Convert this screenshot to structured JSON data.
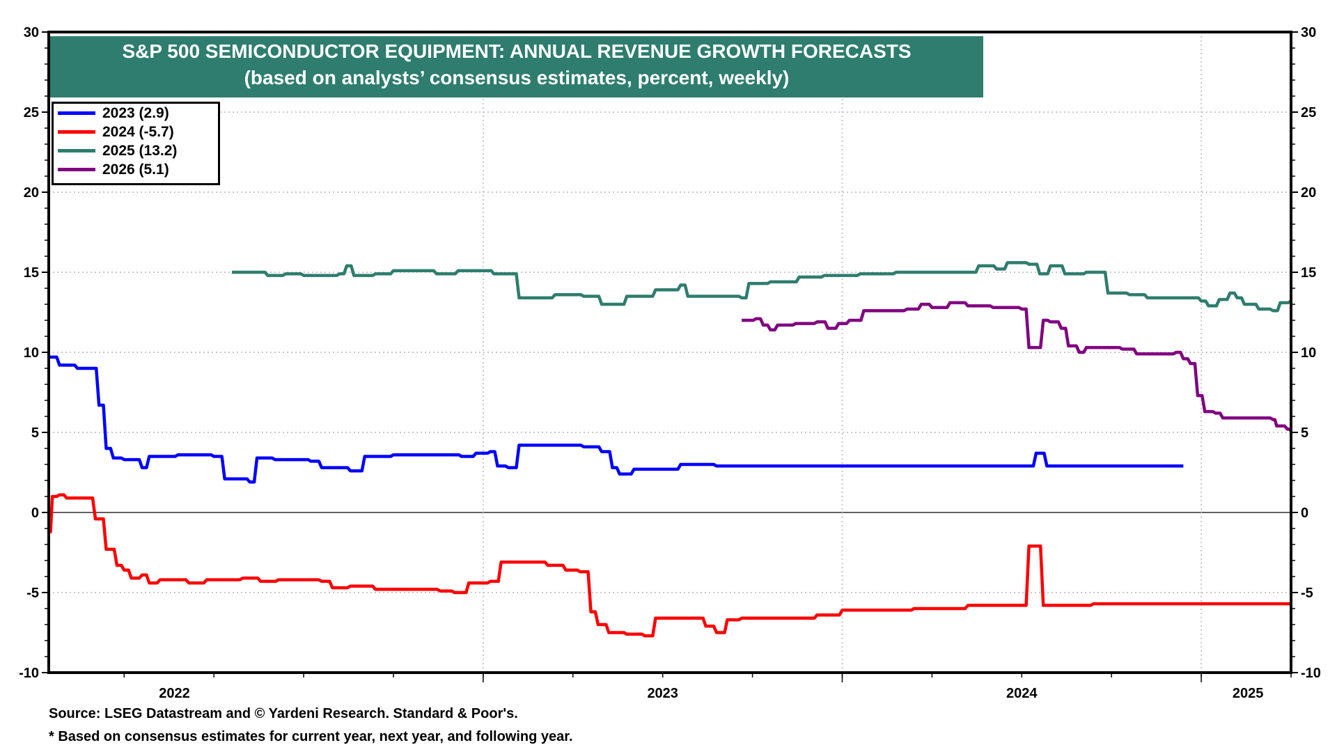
{
  "chart_data": {
    "type": "line",
    "title": "S&P 500 SEMICONDUCTOR EQUIPMENT: ANNUAL REVENUE GROWTH FORECASTS",
    "subtitle": "(based on analysts’ consensus estimates, percent, weekly)",
    "xlabel": "",
    "ylabel": "",
    "ylim": [
      -10,
      30
    ],
    "xlim": [
      2021.79,
      2025.25
    ],
    "yticks": [
      -10,
      -5,
      0,
      5,
      10,
      15,
      20,
      25,
      30
    ],
    "xtick_labels": [
      "2022",
      "2023",
      "2024",
      "2025"
    ],
    "grid": true,
    "legend_position": "top-left",
    "series": [
      {
        "name": "2023 (2.9)",
        "color": "#0000ff",
        "points": [
          [
            2021.79,
            9.7
          ],
          [
            2021.82,
            9.2
          ],
          [
            2021.87,
            9.0
          ],
          [
            2021.93,
            6.7
          ],
          [
            2021.95,
            4.0
          ],
          [
            2021.97,
            3.4
          ],
          [
            2022.0,
            3.3
          ],
          [
            2022.03,
            3.3
          ],
          [
            2022.05,
            2.8
          ],
          [
            2022.07,
            3.5
          ],
          [
            2022.15,
            3.6
          ],
          [
            2022.25,
            3.5
          ],
          [
            2022.28,
            2.1
          ],
          [
            2022.35,
            1.9
          ],
          [
            2022.37,
            3.4
          ],
          [
            2022.42,
            3.3
          ],
          [
            2022.52,
            3.2
          ],
          [
            2022.55,
            2.8
          ],
          [
            2022.63,
            2.6
          ],
          [
            2022.67,
            3.5
          ],
          [
            2022.75,
            3.6
          ],
          [
            2022.88,
            3.6
          ],
          [
            2022.94,
            3.5
          ],
          [
            2022.98,
            3.7
          ],
          [
            2023.02,
            3.8
          ],
          [
            2023.04,
            2.9
          ],
          [
            2023.07,
            2.8
          ],
          [
            2023.1,
            4.2
          ],
          [
            2023.2,
            4.2
          ],
          [
            2023.28,
            4.1
          ],
          [
            2023.33,
            3.8
          ],
          [
            2023.36,
            2.8
          ],
          [
            2023.38,
            2.4
          ],
          [
            2023.42,
            2.7
          ],
          [
            2023.52,
            2.7
          ],
          [
            2023.55,
            3.0
          ],
          [
            2023.65,
            2.9
          ],
          [
            2024.0,
            2.9
          ],
          [
            2024.5,
            2.9
          ],
          [
            2024.54,
            3.7
          ],
          [
            2024.57,
            2.9
          ],
          [
            2024.95,
            2.9
          ]
        ]
      },
      {
        "name": "2024 (-5.7)",
        "color": "#ff0000",
        "points": [
          [
            2021.79,
            -1.2
          ],
          [
            2021.8,
            1.0
          ],
          [
            2021.82,
            1.1
          ],
          [
            2021.84,
            0.9
          ],
          [
            2021.87,
            0.9
          ],
          [
            2021.92,
            -0.4
          ],
          [
            2021.95,
            -2.3
          ],
          [
            2021.98,
            -3.3
          ],
          [
            2022.0,
            -3.6
          ],
          [
            2022.02,
            -4.1
          ],
          [
            2022.05,
            -3.9
          ],
          [
            2022.07,
            -4.4
          ],
          [
            2022.1,
            -4.2
          ],
          [
            2022.18,
            -4.4
          ],
          [
            2022.23,
            -4.2
          ],
          [
            2022.28,
            -4.2
          ],
          [
            2022.33,
            -4.1
          ],
          [
            2022.38,
            -4.3
          ],
          [
            2022.43,
            -4.2
          ],
          [
            2022.5,
            -4.2
          ],
          [
            2022.55,
            -4.3
          ],
          [
            2022.58,
            -4.7
          ],
          [
            2022.63,
            -4.6
          ],
          [
            2022.7,
            -4.8
          ],
          [
            2022.78,
            -4.8
          ],
          [
            2022.83,
            -4.8
          ],
          [
            2022.88,
            -4.9
          ],
          [
            2022.92,
            -5.0
          ],
          [
            2022.96,
            -4.4
          ],
          [
            2023.0,
            -4.4
          ],
          [
            2023.02,
            -4.3
          ],
          [
            2023.05,
            -3.1
          ],
          [
            2023.12,
            -3.1
          ],
          [
            2023.18,
            -3.3
          ],
          [
            2023.23,
            -3.6
          ],
          [
            2023.27,
            -3.7
          ],
          [
            2023.3,
            -6.2
          ],
          [
            2023.32,
            -7.0
          ],
          [
            2023.35,
            -7.5
          ],
          [
            2023.4,
            -7.6
          ],
          [
            2023.45,
            -7.7
          ],
          [
            2023.48,
            -6.6
          ],
          [
            2023.58,
            -6.6
          ],
          [
            2023.62,
            -7.1
          ],
          [
            2023.65,
            -7.5
          ],
          [
            2023.68,
            -6.7
          ],
          [
            2023.72,
            -6.6
          ],
          [
            2023.8,
            -6.6
          ],
          [
            2023.9,
            -6.6
          ],
          [
            2023.93,
            -6.4
          ],
          [
            2023.97,
            -6.4
          ],
          [
            2024.0,
            -6.1
          ],
          [
            2024.1,
            -6.1
          ],
          [
            2024.2,
            -6.0
          ],
          [
            2024.3,
            -6.0
          ],
          [
            2024.35,
            -5.8
          ],
          [
            2024.45,
            -5.8
          ],
          [
            2024.5,
            -5.8
          ],
          [
            2024.52,
            -2.1
          ],
          [
            2024.54,
            -2.1
          ],
          [
            2024.56,
            -5.8
          ],
          [
            2024.65,
            -5.8
          ],
          [
            2024.7,
            -5.7
          ],
          [
            2025.0,
            -5.7
          ],
          [
            2025.25,
            -5.7
          ]
        ]
      },
      {
        "name": "2025 (13.2)",
        "color": "#2e7d6e",
        "points": [
          [
            2022.3,
            15.0
          ],
          [
            2022.38,
            15.0
          ],
          [
            2022.4,
            14.8
          ],
          [
            2022.45,
            14.9
          ],
          [
            2022.5,
            14.8
          ],
          [
            2022.6,
            14.9
          ],
          [
            2022.62,
            15.4
          ],
          [
            2022.64,
            14.8
          ],
          [
            2022.7,
            14.9
          ],
          [
            2022.75,
            15.1
          ],
          [
            2022.8,
            15.1
          ],
          [
            2022.87,
            14.9
          ],
          [
            2022.93,
            15.1
          ],
          [
            2022.98,
            15.1
          ],
          [
            2023.03,
            14.9
          ],
          [
            2023.08,
            14.9
          ],
          [
            2023.1,
            13.4
          ],
          [
            2023.15,
            13.4
          ],
          [
            2023.2,
            13.6
          ],
          [
            2023.28,
            13.5
          ],
          [
            2023.33,
            13.0
          ],
          [
            2023.38,
            13.0
          ],
          [
            2023.4,
            13.5
          ],
          [
            2023.45,
            13.5
          ],
          [
            2023.48,
            13.9
          ],
          [
            2023.53,
            13.9
          ],
          [
            2023.55,
            14.2
          ],
          [
            2023.57,
            13.5
          ],
          [
            2023.65,
            13.5
          ],
          [
            2023.72,
            13.4
          ],
          [
            2023.74,
            14.3
          ],
          [
            2023.8,
            14.4
          ],
          [
            2023.88,
            14.7
          ],
          [
            2023.95,
            14.8
          ],
          [
            2024.05,
            14.9
          ],
          [
            2024.15,
            15.0
          ],
          [
            2024.3,
            15.0
          ],
          [
            2024.38,
            15.4
          ],
          [
            2024.43,
            15.2
          ],
          [
            2024.46,
            15.6
          ],
          [
            2024.52,
            15.5
          ],
          [
            2024.55,
            14.9
          ],
          [
            2024.58,
            15.4
          ],
          [
            2024.62,
            14.9
          ],
          [
            2024.68,
            15.0
          ],
          [
            2024.72,
            15.0
          ],
          [
            2024.74,
            13.7
          ],
          [
            2024.8,
            13.6
          ],
          [
            2024.85,
            13.4
          ],
          [
            2024.95,
            13.4
          ],
          [
            2025.0,
            13.2
          ],
          [
            2025.02,
            12.9
          ],
          [
            2025.05,
            13.3
          ],
          [
            2025.08,
            13.7
          ],
          [
            2025.1,
            13.4
          ],
          [
            2025.12,
            13.0
          ],
          [
            2025.16,
            12.7
          ],
          [
            2025.2,
            12.6
          ],
          [
            2025.22,
            13.1
          ],
          [
            2025.25,
            13.2
          ]
        ]
      },
      {
        "name": "2026 (5.1)",
        "color": "#800080",
        "points": [
          [
            2023.72,
            12.0
          ],
          [
            2023.76,
            12.1
          ],
          [
            2023.78,
            11.7
          ],
          [
            2023.8,
            11.4
          ],
          [
            2023.82,
            11.7
          ],
          [
            2023.87,
            11.8
          ],
          [
            2023.93,
            11.9
          ],
          [
            2023.96,
            11.5
          ],
          [
            2023.99,
            11.8
          ],
          [
            2024.02,
            12.0
          ],
          [
            2024.06,
            12.6
          ],
          [
            2024.12,
            12.6
          ],
          [
            2024.18,
            12.7
          ],
          [
            2024.22,
            13.0
          ],
          [
            2024.25,
            12.8
          ],
          [
            2024.3,
            13.1
          ],
          [
            2024.35,
            12.9
          ],
          [
            2024.42,
            12.8
          ],
          [
            2024.5,
            12.7
          ],
          [
            2024.52,
            10.3
          ],
          [
            2024.54,
            10.3
          ],
          [
            2024.56,
            12.0
          ],
          [
            2024.58,
            11.9
          ],
          [
            2024.61,
            11.5
          ],
          [
            2024.63,
            10.4
          ],
          [
            2024.66,
            10.0
          ],
          [
            2024.68,
            10.3
          ],
          [
            2024.78,
            10.2
          ],
          [
            2024.82,
            9.9
          ],
          [
            2024.9,
            9.9
          ],
          [
            2024.93,
            10.0
          ],
          [
            2024.95,
            9.6
          ],
          [
            2024.97,
            9.3
          ],
          [
            2024.99,
            7.3
          ],
          [
            2025.01,
            6.3
          ],
          [
            2025.04,
            6.2
          ],
          [
            2025.06,
            5.9
          ],
          [
            2025.1,
            5.9
          ],
          [
            2025.17,
            5.9
          ],
          [
            2025.2,
            5.8
          ],
          [
            2025.21,
            5.4
          ],
          [
            2025.24,
            5.2
          ],
          [
            2025.25,
            5.1
          ]
        ]
      }
    ]
  },
  "header": {
    "title": "S&P 500 SEMICONDUCTOR EQUIPMENT: ANNUAL REVENUE GROWTH FORECASTS",
    "subtitle": "(based on analysts’ consensus estimates, percent, weekly)"
  },
  "legend": {
    "items": [
      {
        "label": "2023 (2.9)",
        "color": "#0000ff"
      },
      {
        "label": "2024 (-5.7)",
        "color": "#ff0000"
      },
      {
        "label": "2025 (13.2)",
        "color": "#2e7d6e"
      },
      {
        "label": "2026 (5.1)",
        "color": "#800080"
      }
    ]
  },
  "footer": {
    "source": "Source: LSEG Datastream and © Yardeni Research. Standard & Poor's.",
    "note": "* Based on consensus estimates for current year, next year, and following year."
  }
}
